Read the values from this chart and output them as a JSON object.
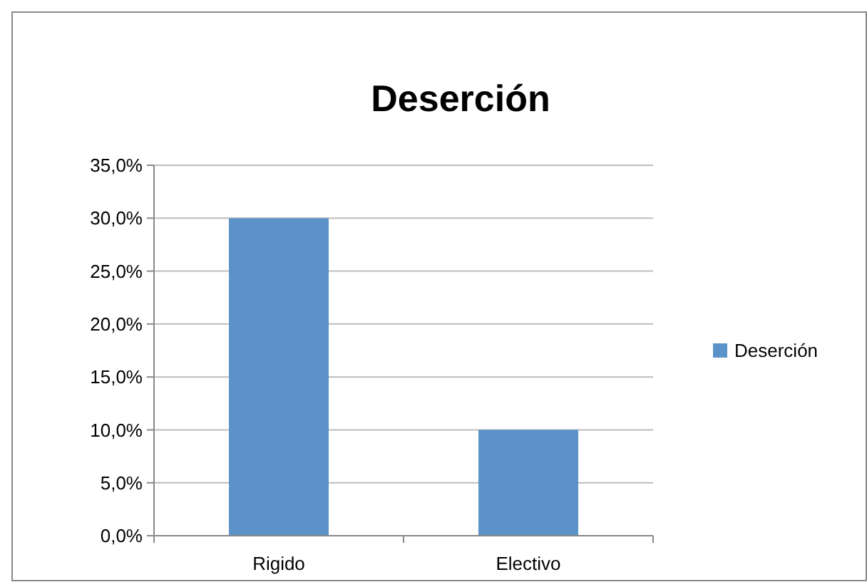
{
  "chart_data": {
    "type": "bar",
    "title": "Deserción",
    "categories": [
      "Rigido",
      "Electivo"
    ],
    "series": [
      {
        "name": "Deserción",
        "color": "#5b93c8",
        "values": [
          30.0,
          10.0
        ]
      }
    ],
    "ylim": [
      0,
      35
    ],
    "yticks": [
      {
        "value": 0,
        "label": "0,0%"
      },
      {
        "value": 5,
        "label": "5,0%"
      },
      {
        "value": 10,
        "label": "10,0%"
      },
      {
        "value": 15,
        "label": "15,0%"
      },
      {
        "value": 20,
        "label": "20,0%"
      },
      {
        "value": 25,
        "label": "25,0%"
      },
      {
        "value": 30,
        "label": "30,0%"
      },
      {
        "value": 35,
        "label": "35,0%"
      }
    ],
    "grid": "y",
    "legend": "right"
  }
}
